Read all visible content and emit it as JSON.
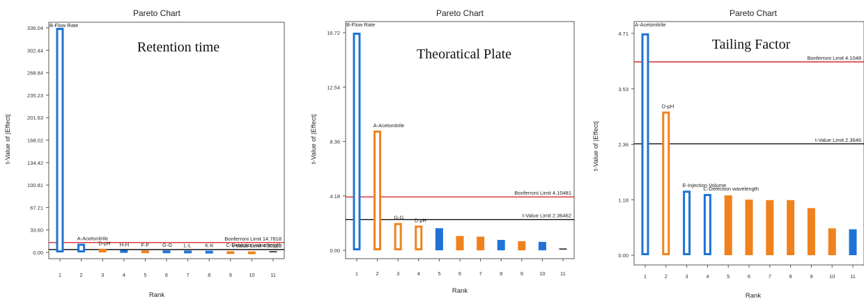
{
  "colors": {
    "blue": "#1f73d6",
    "orange": "#f0821e",
    "red": "#d82a2a",
    "black": "#111111"
  },
  "chart_data": [
    {
      "type": "bar",
      "title": "Pareto Chart",
      "annotation": "Retention time",
      "xlabel": "Rank",
      "ylabel": "t-Value of |Effect|",
      "categories": [
        1,
        2,
        3,
        4,
        5,
        6,
        7,
        8,
        9,
        10,
        11
      ],
      "x_tick_labels": [
        "1",
        "2",
        "3",
        "4",
        "5",
        "6",
        "7",
        "8",
        "9",
        "10",
        "11"
      ],
      "y_ticks": [
        "0.00",
        "33.60",
        "67.21",
        "100.81",
        "134.42",
        "168.02",
        "201.63",
        "235.23",
        "268.84",
        "302.44",
        "336.04"
      ],
      "ylim": [
        0,
        336.04
      ],
      "values": [
        336.0,
        13.0,
        5.5,
        3.5,
        3.0,
        3.0,
        2.8,
        2.5,
        1.8,
        1.5,
        1.0
      ],
      "colors": [
        "blue",
        "blue",
        "orange",
        "blue",
        "orange",
        "blue",
        "blue",
        "blue",
        "orange",
        "orange",
        "black"
      ],
      "style": [
        "hollow",
        "hollow",
        "hollow",
        "hollow",
        "hollow",
        "hollow",
        "hollow",
        "hollow",
        "hollow",
        "hollow",
        "line"
      ],
      "bar_labels": [
        "B-Flow Rate",
        "A-Acetonitrile",
        "D-pH",
        "H-H",
        "F-F",
        "G-G",
        "L-L",
        "K-K",
        "",
        "",
        ""
      ],
      "reference_lines": [
        {
          "label": "Bonferroni Limit 14.7818",
          "value": 14.7818,
          "color": "red"
        },
        {
          "label": "t-Value Limit 4.30265",
          "value": 4.30265,
          "color": "black"
        }
      ],
      "extra_labels": [
        "C-Detection wavelength"
      ],
      "grid": false
    },
    {
      "type": "bar",
      "title": "Pareto Chart",
      "annotation": "Theoratical Plate",
      "xlabel": "Rank",
      "ylabel": "t-Value of |Effect|",
      "categories": [
        1,
        2,
        3,
        4,
        5,
        6,
        7,
        8,
        9,
        10,
        11
      ],
      "x_tick_labels": [
        "1",
        "2",
        "3",
        "4",
        "5",
        "6",
        "7",
        "8",
        "9",
        "10",
        "11"
      ],
      "y_ticks": [
        "0.00",
        "4.18",
        "8.36",
        "12.54",
        "16.72"
      ],
      "ylim": [
        0,
        16.72
      ],
      "values": [
        16.72,
        9.2,
        2.1,
        1.9,
        1.7,
        1.1,
        1.05,
        0.8,
        0.7,
        0.65,
        0.1
      ],
      "colors": [
        "blue",
        "orange",
        "orange",
        "orange",
        "blue",
        "orange",
        "orange",
        "blue",
        "orange",
        "blue",
        "black"
      ],
      "style": [
        "hollow",
        "hollow",
        "hollow",
        "hollow",
        "solid",
        "solid",
        "solid",
        "solid",
        "solid",
        "solid",
        "line"
      ],
      "bar_labels": [
        "B-Flow Rate",
        "A-Acetonitrile",
        "G-G",
        "D pH",
        "",
        "",
        "",
        "",
        "",
        "",
        ""
      ],
      "reference_lines": [
        {
          "label": "Bonferroni Limit 4.10481",
          "value": 4.10481,
          "color": "red"
        },
        {
          "label": "t-Value Limit 2.36462",
          "value": 2.36462,
          "color": "black"
        }
      ],
      "grid": false
    },
    {
      "type": "bar",
      "title": "Pareto Chart",
      "annotation": "Tailing Factor",
      "xlabel": "Rank",
      "ylabel": "t-Value of |Effect|",
      "categories": [
        1,
        2,
        3,
        4,
        5,
        6,
        7,
        8,
        9,
        10,
        11
      ],
      "x_tick_labels": [
        "1",
        "2",
        "3",
        "4",
        "5",
        "6",
        "7",
        "8",
        "9",
        "10",
        "11"
      ],
      "y_ticks": [
        "0.00",
        "1.18",
        "2.36",
        "3.53",
        "4.71"
      ],
      "ylim": [
        0,
        4.71
      ],
      "values": [
        4.71,
        3.05,
        1.37,
        1.3,
        1.27,
        1.18,
        1.17,
        1.17,
        1.0,
        0.57,
        0.55
      ],
      "colors": [
        "blue",
        "orange",
        "blue",
        "blue",
        "orange",
        "orange",
        "orange",
        "orange",
        "orange",
        "orange",
        "blue"
      ],
      "style": [
        "hollow",
        "hollow",
        "hollow",
        "hollow",
        "solid",
        "solid",
        "solid",
        "solid",
        "solid",
        "solid",
        "solid"
      ],
      "bar_labels": [
        "A-Acetonitrile",
        "D-pH",
        "E-Injection Volume",
        "C-Detection wavelength",
        "",
        "",
        "",
        "",
        "",
        "",
        ""
      ],
      "reference_lines": [
        {
          "label": "Bonferroni Limit 4.1048",
          "value": 4.1048,
          "color": "red"
        },
        {
          "label": "t-Value Limit 2.3646",
          "value": 2.3646,
          "color": "black"
        }
      ],
      "grid": false
    }
  ]
}
